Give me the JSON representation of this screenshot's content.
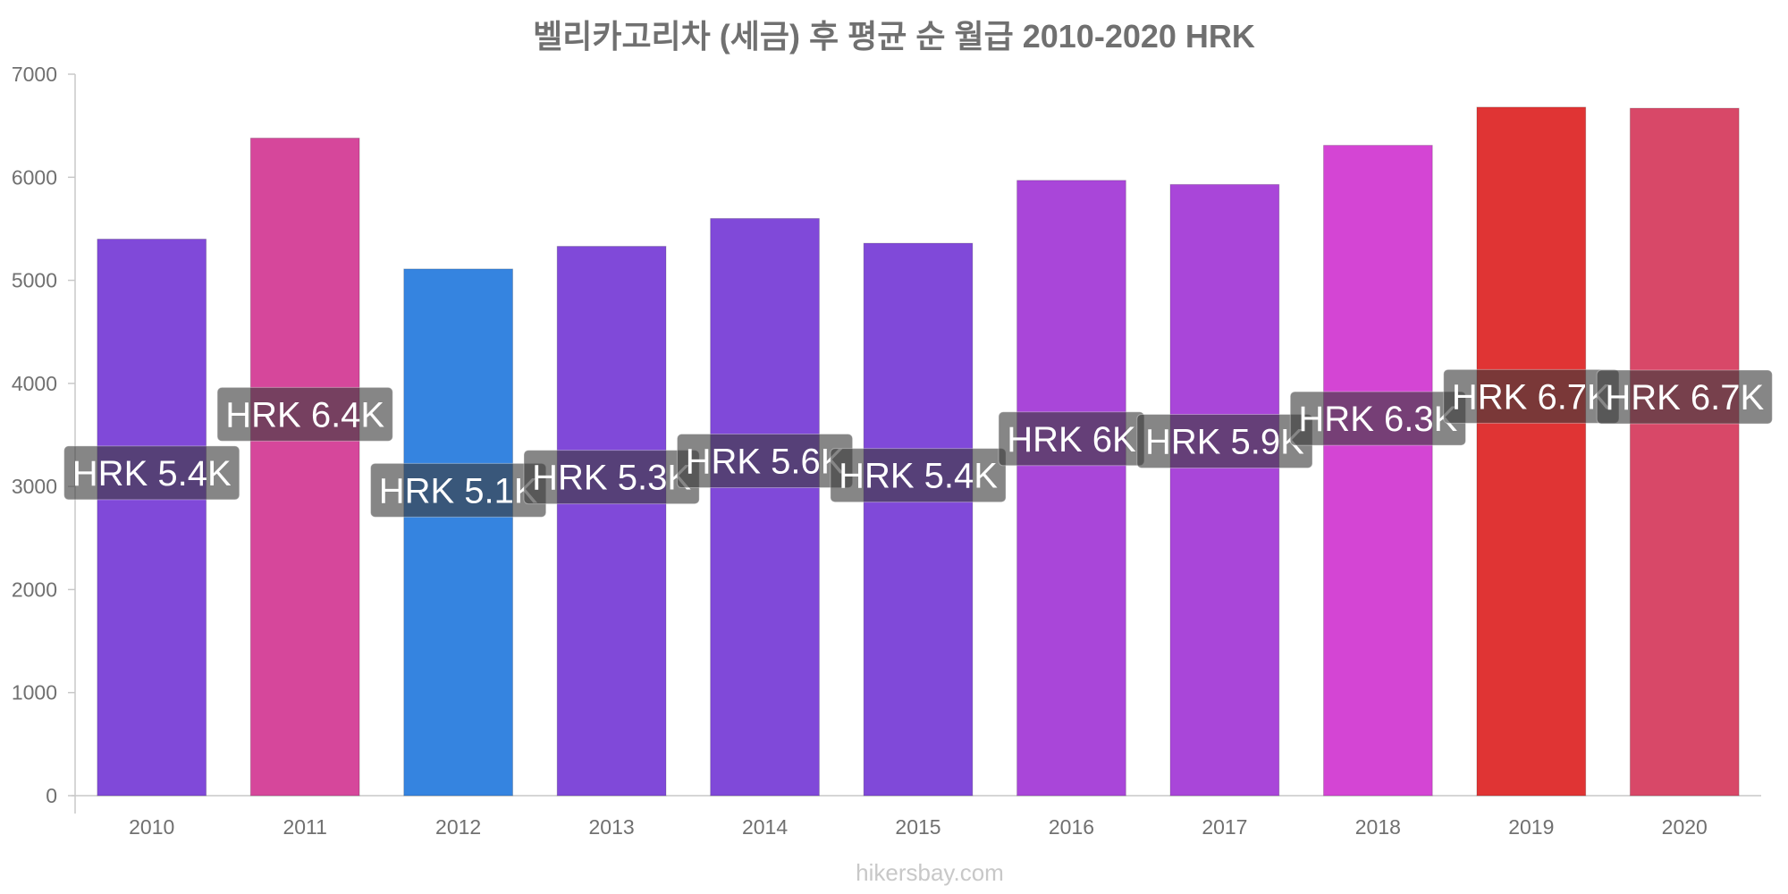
{
  "chart_data": {
    "type": "bar",
    "title": "벨리카고리차 (세금) 후 평균 순 월급 2010-2020 HRK",
    "xlabel": "",
    "ylabel": "",
    "categories": [
      "2010",
      "2011",
      "2012",
      "2013",
      "2014",
      "2015",
      "2016",
      "2017",
      "2018",
      "2019",
      "2020"
    ],
    "values": [
      5400,
      6380,
      5110,
      5330,
      5600,
      5360,
      5970,
      5930,
      6310,
      6680,
      6670
    ],
    "data_labels": [
      "HRK 5.4K",
      "HRK 6.4K",
      "HRK 5.1K",
      "HRK 5.3K",
      "HRK 5.6K",
      "HRK 5.4K",
      "HRK 6K",
      "HRK 5.9K",
      "HRK 6.3K",
      "HRK 6.7K",
      "HRK 6.7K"
    ],
    "colors": [
      "#8049d9",
      "#d6479b",
      "#3584e0",
      "#8049d9",
      "#8049d9",
      "#8049d9",
      "#a946d9",
      "#a946d9",
      "#d445d4",
      "#e03434",
      "#d84868"
    ],
    "ylim": [
      0,
      7000
    ],
    "yticks": [
      0,
      1000,
      2000,
      3000,
      4000,
      5000,
      6000,
      7000
    ],
    "grid": false,
    "legend": "none"
  },
  "watermark": "hikersbay.com"
}
